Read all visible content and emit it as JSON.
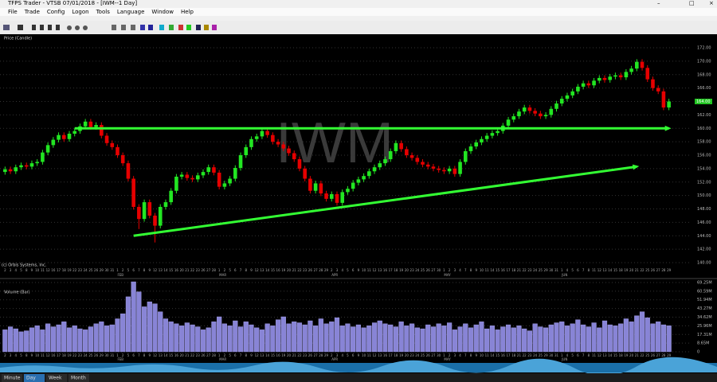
{
  "window": {
    "title": "TFPS Trader - VTSB 07/01/2018 - [IWM--1 Day]"
  },
  "menu": [
    "File",
    "Trade",
    "Config",
    "Logon",
    "Tools",
    "Language",
    "Window",
    "Help"
  ],
  "tabs": [
    "Minute",
    "Day",
    "Week",
    "Month"
  ],
  "chart_data": {
    "type": "candlestick",
    "price_label": "Price (Candle)",
    "volume_label": "Volume (Bar)",
    "copyright": "(c) Orbis Systems, Inc.",
    "watermark": "IWM",
    "months": [
      "FEB",
      "MAR",
      "APR",
      "MAY",
      "JUN"
    ],
    "categories": [
      "2",
      "3",
      "4",
      "5",
      "8",
      "9",
      "10",
      "11",
      "12",
      "16",
      "17",
      "18",
      "19",
      "22",
      "23",
      "24",
      "25",
      "26",
      "29",
      "30",
      "31",
      "1",
      "2",
      "5",
      "6",
      "7",
      "8",
      "9",
      "12",
      "13",
      "14",
      "15",
      "16",
      "20",
      "21",
      "22",
      "23",
      "26",
      "27",
      "28",
      "1",
      "2",
      "5",
      "6",
      "7",
      "8",
      "9",
      "12",
      "13",
      "14",
      "15",
      "16",
      "19",
      "20",
      "21",
      "22",
      "23",
      "26",
      "27",
      "28",
      "29",
      "2",
      "3",
      "4",
      "5",
      "6",
      "9",
      "10",
      "11",
      "12",
      "13",
      "16",
      "17",
      "18",
      "19",
      "20",
      "23",
      "24",
      "25",
      "26",
      "27",
      "30",
      "1",
      "2",
      "3",
      "4",
      "7",
      "8",
      "9",
      "10",
      "11",
      "14",
      "15",
      "16",
      "17",
      "18",
      "21",
      "22",
      "23",
      "24",
      "25",
      "29",
      "30",
      "31",
      "1",
      "4",
      "5",
      "6",
      "7",
      "8",
      "11",
      "12",
      "13",
      "14",
      "15",
      "18",
      "19",
      "20",
      "21",
      "22",
      "25",
      "26",
      "27",
      "28",
      "29"
    ],
    "open": [
      153.5,
      153.9,
      153.6,
      154.2,
      154.5,
      154.3,
      154.8,
      155.0,
      156.4,
      157.5,
      158.3,
      159.0,
      158.4,
      159.2,
      159.6,
      160.3,
      161.0,
      160.2,
      160.5,
      158.9,
      157.8,
      157.2,
      156.0,
      154.8,
      152.5,
      148.3,
      146.5,
      149.0,
      147.0,
      145.5,
      148.3,
      149.0,
      150.7,
      152.8,
      153.1,
      152.6,
      152.4,
      153.0,
      153.5,
      154.2,
      153.4,
      151.3,
      151.8,
      152.5,
      154.1,
      156.0,
      157.2,
      158.4,
      158.8,
      159.6,
      159.0,
      158.0,
      157.6,
      157.0,
      156.3,
      155.4,
      154.0,
      152.5,
      150.7,
      151.8,
      150.3,
      149.5,
      150.2,
      148.9,
      150.5,
      151.0,
      151.9,
      152.4,
      152.9,
      153.6,
      154.2,
      154.8,
      155.4,
      156.6,
      157.8,
      156.9,
      156.0,
      155.6,
      155.0,
      154.6,
      154.3,
      154.0,
      153.8,
      153.6,
      154.0,
      153.2,
      155.0,
      156.6,
      157.3,
      157.9,
      158.4,
      158.9,
      159.3,
      159.6,
      160.4,
      161.3,
      161.8,
      162.5,
      163.1,
      162.6,
      162.2,
      161.8,
      162.0,
      162.9,
      163.7,
      164.4,
      164.9,
      165.5,
      166.2,
      166.7,
      166.4,
      167.1,
      167.5,
      167.2,
      167.7,
      167.9,
      167.6,
      168.4,
      168.9,
      169.9,
      169.0,
      167.3,
      166.0,
      165.5,
      163.1
    ],
    "high": [
      154.3,
      154.3,
      154.6,
      154.9,
      154.9,
      155.2,
      155.4,
      156.8,
      157.9,
      158.7,
      159.4,
      159.4,
      159.6,
      160.0,
      160.7,
      161.4,
      161.4,
      160.9,
      160.9,
      159.3,
      158.2,
      157.6,
      156.4,
      155.2,
      152.9,
      148.7,
      149.4,
      149.4,
      147.4,
      148.7,
      149.4,
      151.1,
      153.2,
      153.5,
      153.5,
      153.0,
      153.4,
      153.9,
      154.6,
      154.6,
      153.8,
      152.2,
      152.9,
      154.5,
      156.4,
      157.6,
      158.8,
      159.2,
      160.0,
      160.0,
      159.4,
      158.4,
      158.0,
      157.4,
      156.7,
      155.8,
      154.4,
      152.9,
      152.2,
      152.2,
      150.7,
      150.6,
      150.6,
      150.9,
      151.4,
      152.3,
      152.8,
      153.3,
      154.0,
      154.6,
      155.2,
      155.8,
      157.0,
      158.2,
      158.2,
      157.3,
      156.4,
      156.0,
      155.4,
      155.0,
      154.7,
      154.4,
      154.2,
      154.4,
      154.4,
      155.4,
      157.0,
      157.7,
      158.3,
      158.8,
      159.3,
      159.7,
      160.0,
      160.8,
      161.7,
      162.2,
      162.9,
      163.5,
      163.5,
      163.0,
      162.6,
      162.4,
      163.3,
      164.1,
      164.8,
      165.3,
      165.9,
      166.6,
      167.1,
      167.1,
      167.5,
      167.9,
      167.9,
      168.1,
      168.3,
      168.3,
      168.8,
      169.3,
      170.3,
      170.3,
      169.4,
      167.7,
      166.4,
      165.9,
      164.4
    ],
    "low": [
      153.1,
      153.2,
      153.2,
      153.8,
      153.9,
      153.9,
      154.4,
      154.6,
      156.0,
      157.1,
      157.9,
      158.0,
      158.0,
      158.8,
      159.2,
      159.9,
      159.8,
      159.8,
      158.5,
      157.4,
      156.8,
      155.6,
      154.4,
      152.1,
      147.9,
      145.0,
      146.1,
      146.6,
      143.0,
      145.1,
      147.9,
      148.6,
      150.3,
      152.4,
      152.2,
      152.0,
      152.0,
      152.6,
      153.1,
      153.0,
      150.9,
      150.9,
      151.4,
      152.1,
      153.7,
      155.6,
      156.8,
      158.0,
      158.4,
      158.6,
      157.6,
      157.2,
      156.6,
      155.9,
      155.0,
      153.6,
      152.1,
      150.3,
      150.3,
      149.9,
      149.1,
      149.1,
      148.5,
      148.5,
      150.1,
      150.6,
      151.5,
      152.0,
      152.5,
      153.2,
      153.8,
      154.4,
      155.0,
      156.2,
      156.5,
      155.6,
      155.2,
      154.6,
      154.2,
      153.9,
      153.6,
      153.4,
      153.2,
      153.2,
      152.8,
      152.8,
      154.6,
      156.2,
      156.9,
      157.5,
      158.0,
      158.5,
      158.9,
      159.2,
      160.0,
      160.9,
      161.4,
      162.1,
      162.2,
      161.8,
      161.4,
      161.4,
      161.6,
      162.5,
      163.3,
      164.0,
      164.5,
      165.1,
      165.8,
      166.0,
      166.0,
      166.7,
      166.8,
      166.8,
      167.3,
      167.2,
      167.2,
      168.0,
      168.5,
      168.6,
      166.9,
      165.6,
      165.1,
      162.7,
      162.7
    ],
    "close": [
      153.9,
      153.6,
      154.2,
      154.5,
      154.3,
      154.8,
      155.0,
      156.4,
      157.5,
      158.3,
      159.0,
      158.4,
      159.2,
      159.6,
      160.3,
      161.0,
      160.2,
      160.5,
      158.9,
      157.8,
      157.2,
      156.0,
      154.8,
      152.5,
      148.3,
      146.5,
      149.0,
      147.0,
      145.5,
      148.3,
      149.0,
      150.7,
      152.8,
      153.1,
      152.6,
      152.4,
      153.0,
      153.5,
      154.2,
      153.4,
      151.3,
      151.8,
      152.5,
      154.1,
      156.0,
      157.2,
      158.4,
      158.8,
      159.6,
      159.0,
      158.0,
      157.6,
      157.0,
      156.3,
      155.4,
      154.0,
      152.5,
      150.7,
      151.8,
      150.3,
      149.5,
      150.2,
      148.9,
      150.5,
      151.0,
      151.9,
      152.4,
      152.9,
      153.6,
      154.2,
      154.8,
      155.4,
      156.6,
      157.8,
      156.9,
      156.0,
      155.6,
      155.0,
      154.6,
      154.3,
      154.0,
      153.8,
      153.6,
      154.0,
      153.2,
      155.0,
      156.6,
      157.3,
      157.9,
      158.4,
      158.9,
      159.3,
      159.6,
      160.4,
      161.3,
      161.8,
      162.5,
      163.1,
      162.6,
      162.2,
      161.8,
      162.0,
      162.9,
      163.7,
      164.4,
      164.9,
      165.5,
      166.2,
      166.7,
      166.4,
      167.1,
      167.5,
      167.2,
      167.7,
      167.9,
      167.6,
      168.4,
      168.9,
      169.9,
      169.0,
      167.3,
      166.0,
      165.5,
      163.1,
      164.0
    ],
    "last_close_label": "164.00",
    "volume": [
      22,
      25,
      23,
      20,
      21,
      24,
      26,
      22,
      28,
      25,
      27,
      30,
      24,
      26,
      23,
      22,
      25,
      28,
      30,
      26,
      27,
      33,
      38,
      55,
      70,
      60,
      45,
      50,
      48,
      40,
      33,
      30,
      28,
      26,
      29,
      27,
      25,
      22,
      24,
      30,
      35,
      28,
      26,
      31,
      25,
      30,
      27,
      24,
      22,
      28,
      26,
      32,
      35,
      28,
      30,
      29,
      27,
      31,
      26,
      33,
      28,
      30,
      34,
      26,
      28,
      25,
      27,
      24,
      26,
      29,
      31,
      28,
      27,
      25,
      30,
      26,
      28,
      24,
      23,
      27,
      25,
      28,
      26,
      29,
      22,
      25,
      28,
      24,
      27,
      30,
      23,
      26,
      22,
      25,
      27,
      24,
      26,
      23,
      21,
      28,
      25,
      24,
      27,
      29,
      30,
      26,
      28,
      32,
      27,
      25,
      29,
      24,
      31,
      27,
      26,
      28,
      33,
      30,
      36,
      40,
      34,
      28,
      30,
      27,
      26
    ],
    "up_color": "#22e622",
    "down_color": "#e60000",
    "volume_color": "#8884d6",
    "ylim": [
      140,
      172
    ],
    "yticks": [
      {
        "value": 140,
        "label": "140.00"
      },
      {
        "value": 142,
        "label": "142.00"
      },
      {
        "value": 144,
        "label": "144.00"
      },
      {
        "value": 146,
        "label": "146.00"
      },
      {
        "value": 148,
        "label": "148.00"
      },
      {
        "value": 150,
        "label": "150.00"
      },
      {
        "value": 152,
        "label": "152.00"
      },
      {
        "value": 154,
        "label": "154.00"
      },
      {
        "value": 156,
        "label": "156.00"
      },
      {
        "value": 158,
        "label": "158.00"
      },
      {
        "value": 160,
        "label": "160.00"
      },
      {
        "value": 162,
        "label": "162.00"
      },
      {
        "value": 164,
        "label": "164.00"
      },
      {
        "value": 166,
        "label": "166.00"
      },
      {
        "value": 168,
        "label": "168.00"
      },
      {
        "value": 170,
        "label": "170.00"
      },
      {
        "value": 172,
        "label": "172.00"
      }
    ],
    "y2lim": [
      0,
      69.25
    ],
    "y2ticks": [
      0,
      {
        "value": 8.65,
        "label": "8.65M"
      },
      {
        "value": 17.31,
        "label": "17.31M"
      },
      {
        "value": 25.96,
        "label": "25.96M"
      },
      {
        "value": 34.62,
        "label": "34.62M"
      },
      {
        "value": 43.27,
        "label": "43.27M"
      },
      {
        "value": 51.94,
        "label": "51.94M"
      },
      {
        "value": 60.59,
        "label": "60.59M"
      },
      {
        "value": 69.25,
        "label": "69.25M"
      }
    ],
    "grid": true,
    "trendlines": [
      {
        "x": [
          13,
          124
        ],
        "y": [
          160,
          160
        ],
        "color": "#33ff33"
      },
      {
        "x": [
          24,
          118
        ],
        "y": [
          144,
          154.3
        ],
        "color": "#33ff33"
      }
    ]
  }
}
